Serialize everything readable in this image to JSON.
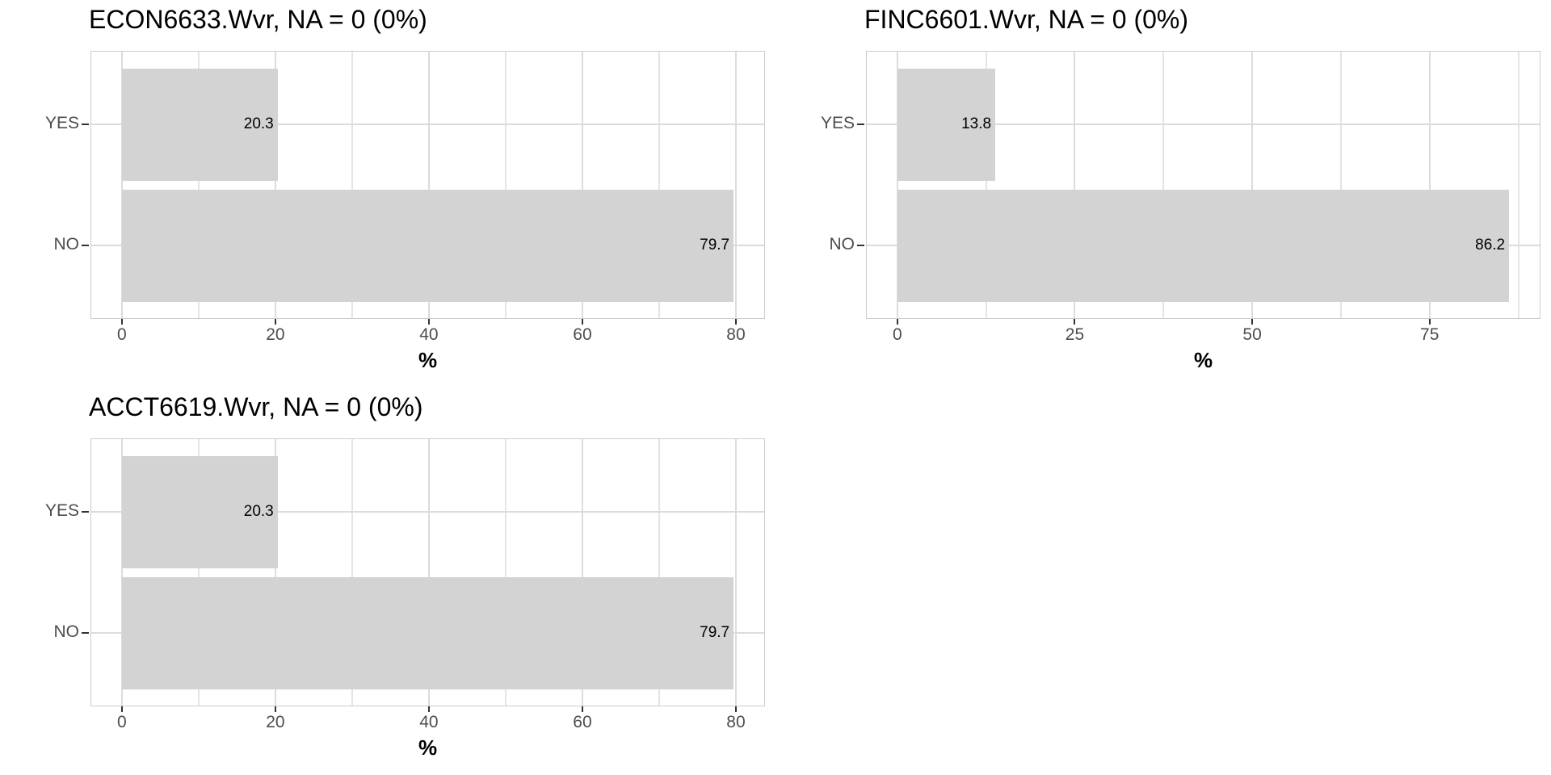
{
  "style": {
    "page_bg": "#ffffff",
    "panel_bg": "#ffffff",
    "panel_border": "#cccccc",
    "grid_major": "#dcdcdc",
    "grid_minor": "#e4e4e4",
    "bar_fill": "#d3d3d3",
    "tick_mark": "#333333",
    "axis_text": "#4d4d4d",
    "title_color": "#000000",
    "value_color": "#000000"
  },
  "chart_data": [
    {
      "type": "bar",
      "orientation": "horizontal",
      "title": "ECON6633.Wvr, NA = 0 (0%)",
      "categories": [
        "YES",
        "NO"
      ],
      "values": [
        20.3,
        79.7
      ],
      "value_labels": [
        "20.3",
        "79.7"
      ],
      "xlabel": "%",
      "x_ticks": [
        0,
        20,
        40,
        60,
        80
      ],
      "x_tick_labels": [
        "0",
        "20",
        "40",
        "60",
        "80"
      ],
      "xlim": [
        -3.985,
        83.685
      ],
      "grid": true,
      "legend": "none"
    },
    {
      "type": "bar",
      "orientation": "horizontal",
      "title": "FINC6601.Wvr, NA = 0 (0%)",
      "categories": [
        "YES",
        "NO"
      ],
      "values": [
        13.8,
        86.2
      ],
      "value_labels": [
        "13.8",
        "86.2"
      ],
      "xlabel": "%",
      "x_ticks": [
        0,
        25,
        50,
        75
      ],
      "x_tick_labels": [
        "0",
        "25",
        "50",
        "75"
      ],
      "xlim": [
        -4.31,
        90.51
      ],
      "grid": true,
      "legend": "none"
    },
    {
      "type": "bar",
      "orientation": "horizontal",
      "title": "ACCT6619.Wvr, NA = 0 (0%)",
      "categories": [
        "YES",
        "NO"
      ],
      "values": [
        20.3,
        79.7
      ],
      "value_labels": [
        "20.3",
        "79.7"
      ],
      "xlabel": "%",
      "x_ticks": [
        0,
        20,
        40,
        60,
        80
      ],
      "x_tick_labels": [
        "0",
        "20",
        "40",
        "60",
        "80"
      ],
      "xlim": [
        -3.985,
        83.685
      ],
      "grid": true,
      "legend": "none"
    }
  ]
}
